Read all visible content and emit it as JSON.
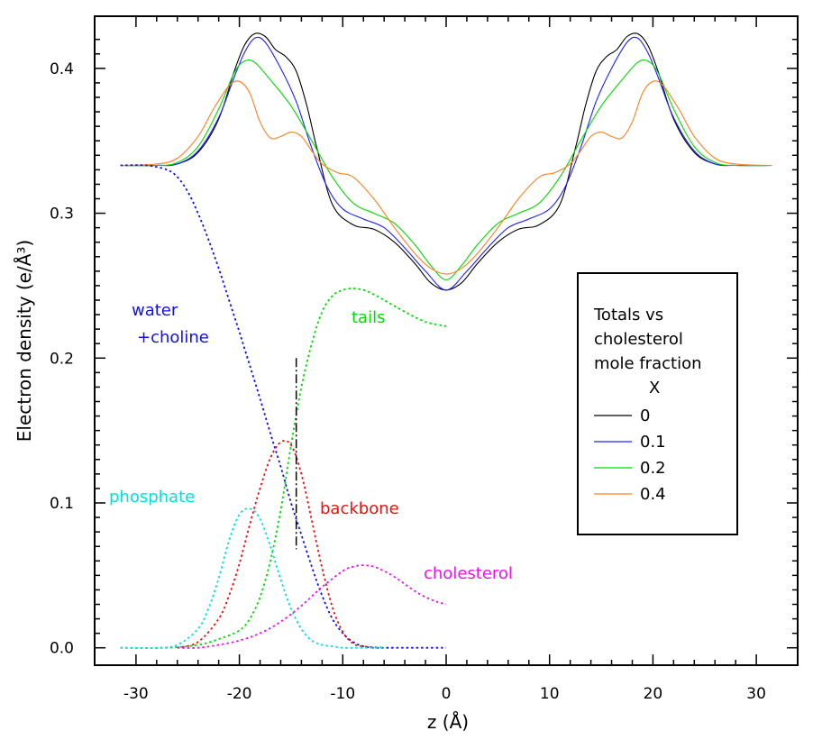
{
  "chart_data": {
    "type": "line",
    "xlabel": "z (Å)",
    "ylabel": "Electron density (e/Å³)",
    "xlim": [
      -34,
      34
    ],
    "ylim": [
      -0.012,
      0.436
    ],
    "xticks": [
      -30,
      -20,
      -10,
      0,
      10,
      20,
      30
    ],
    "xtick_labels": [
      "-30",
      "-20",
      "-10",
      "0",
      "10",
      "20",
      "30"
    ],
    "yticks": [
      0.0,
      0.1,
      0.2,
      0.3,
      0.4
    ],
    "ytick_labels": [
      "0.0",
      "0.1",
      "0.2",
      "0.3",
      "0.4"
    ],
    "grid": false,
    "legend": {
      "position": "right",
      "title_lines": [
        "Totals vs",
        "cholesterol",
        "mole fraction",
        "X"
      ],
      "entries": [
        {
          "label": "0",
          "color": "#000000"
        },
        {
          "label": "0.1",
          "color": "#2020ff"
        },
        {
          "label": "0.2",
          "color": "#00dd00"
        },
        {
          "label": "0.4",
          "color": "#ff8020"
        }
      ]
    },
    "series": [
      {
        "name": "0",
        "style": "solid",
        "color": "#000000",
        "x": [
          -31.5,
          -28,
          -26,
          -24,
          -22,
          -20.5,
          -19.5,
          -18.5,
          -17.5,
          -16.5,
          -15.5,
          -14.5,
          -13.5,
          -12.5,
          -11,
          -9,
          -7,
          -5,
          -3,
          -1.5,
          0,
          1.5,
          3,
          5,
          7,
          9,
          11,
          12.5,
          13.5,
          14.5,
          15.5,
          16.5,
          17.5,
          18.5,
          19.5,
          20.5,
          22,
          24,
          26,
          28,
          31.5
        ],
        "y": [
          0.333,
          0.333,
          0.334,
          0.342,
          0.365,
          0.398,
          0.416,
          0.424,
          0.422,
          0.413,
          0.408,
          0.398,
          0.375,
          0.345,
          0.306,
          0.292,
          0.289,
          0.28,
          0.265,
          0.252,
          0.247,
          0.252,
          0.265,
          0.28,
          0.289,
          0.292,
          0.306,
          0.345,
          0.375,
          0.398,
          0.408,
          0.413,
          0.422,
          0.424,
          0.416,
          0.398,
          0.365,
          0.342,
          0.334,
          0.333,
          0.333
        ]
      },
      {
        "name": "0.1",
        "style": "solid",
        "color": "#2020ff",
        "x": [
          -31.5,
          -28,
          -26,
          -24,
          -22,
          -20.5,
          -19.5,
          -18.5,
          -17.5,
          -16,
          -14.5,
          -13,
          -11.5,
          -10,
          -8,
          -6,
          -4,
          -2,
          0,
          2,
          4,
          6,
          8,
          10,
          11.5,
          13,
          14.5,
          16,
          17.5,
          18.5,
          19.5,
          20.5,
          22,
          24,
          26,
          28,
          31.5
        ],
        "y": [
          0.333,
          0.333,
          0.334,
          0.343,
          0.366,
          0.394,
          0.411,
          0.421,
          0.418,
          0.4,
          0.377,
          0.345,
          0.318,
          0.303,
          0.296,
          0.29,
          0.276,
          0.26,
          0.247,
          0.26,
          0.276,
          0.29,
          0.296,
          0.303,
          0.318,
          0.345,
          0.377,
          0.4,
          0.418,
          0.421,
          0.411,
          0.394,
          0.366,
          0.343,
          0.334,
          0.333,
          0.333
        ]
      },
      {
        "name": "0.2",
        "style": "solid",
        "color": "#00dd00",
        "x": [
          -31.5,
          -28,
          -26,
          -24,
          -22,
          -20.5,
          -19.5,
          -18.5,
          -17,
          -15,
          -13,
          -11,
          -9,
          -7,
          -5,
          -3,
          -1.5,
          0,
          1.5,
          3,
          5,
          7,
          9,
          11,
          13,
          15,
          17,
          18.5,
          19.5,
          20.5,
          22,
          24,
          26,
          28,
          31.5
        ],
        "y": [
          0.333,
          0.333,
          0.335,
          0.346,
          0.372,
          0.397,
          0.405,
          0.404,
          0.392,
          0.374,
          0.35,
          0.325,
          0.307,
          0.3,
          0.293,
          0.278,
          0.264,
          0.254,
          0.264,
          0.278,
          0.293,
          0.3,
          0.307,
          0.325,
          0.35,
          0.374,
          0.392,
          0.404,
          0.405,
          0.397,
          0.372,
          0.346,
          0.335,
          0.333,
          0.333
        ]
      },
      {
        "name": "0.4",
        "style": "solid",
        "color": "#ff8020",
        "x": [
          -31.5,
          -28,
          -26,
          -24,
          -22.5,
          -21,
          -20,
          -19,
          -18,
          -17,
          -16,
          -15,
          -14,
          -13,
          -12,
          -10.5,
          -9,
          -7,
          -5,
          -3,
          -1.5,
          0,
          1.5,
          3,
          5,
          7,
          9,
          10.5,
          12,
          13,
          14,
          15,
          16,
          17,
          18,
          19,
          20,
          21,
          22.5,
          24,
          26,
          28,
          31.5
        ],
        "y": [
          0.333,
          0.334,
          0.338,
          0.353,
          0.372,
          0.388,
          0.391,
          0.383,
          0.363,
          0.352,
          0.353,
          0.356,
          0.353,
          0.343,
          0.334,
          0.328,
          0.325,
          0.31,
          0.29,
          0.272,
          0.262,
          0.258,
          0.262,
          0.272,
          0.29,
          0.31,
          0.325,
          0.328,
          0.334,
          0.343,
          0.353,
          0.356,
          0.353,
          0.352,
          0.363,
          0.383,
          0.391,
          0.388,
          0.372,
          0.353,
          0.338,
          0.334,
          0.333
        ]
      },
      {
        "name": "water +choline",
        "style": "dotted",
        "color": "#1010ee",
        "x": [
          -31.5,
          -29,
          -27,
          -26,
          -25,
          -24,
          -23,
          -22,
          -21,
          -20,
          -19,
          -18,
          -17,
          -16,
          -15,
          -14,
          -13,
          -12,
          -11,
          -10,
          -9,
          -8,
          -7,
          -6,
          -4,
          -2,
          0
        ],
        "y": [
          0.333,
          0.333,
          0.33,
          0.325,
          0.315,
          0.3,
          0.282,
          0.262,
          0.24,
          0.218,
          0.195,
          0.172,
          0.148,
          0.125,
          0.1,
          0.078,
          0.056,
          0.036,
          0.02,
          0.01,
          0.004,
          0.001,
          0.0,
          0.0,
          0.0,
          0.0,
          0.0
        ]
      },
      {
        "name": "tails",
        "style": "dotted",
        "color": "#00dd00",
        "x": [
          -31.5,
          -27,
          -24,
          -22,
          -20,
          -19,
          -18,
          -17,
          -16,
          -15,
          -14,
          -13,
          -12,
          -11,
          -10,
          -9,
          -8,
          -7,
          -6,
          -4,
          -2,
          0
        ],
        "y": [
          0.0,
          0.0,
          0.002,
          0.006,
          0.012,
          0.02,
          0.035,
          0.06,
          0.095,
          0.14,
          0.18,
          0.21,
          0.232,
          0.243,
          0.247,
          0.248,
          0.247,
          0.244,
          0.24,
          0.232,
          0.225,
          0.222
        ]
      },
      {
        "name": "backbone",
        "style": "dotted",
        "color": "#ee1010",
        "x": [
          -26,
          -24,
          -22,
          -21,
          -20,
          -19,
          -18,
          -17,
          -16,
          -15,
          -14,
          -13,
          -12,
          -11,
          -10,
          -9,
          -8,
          -6
        ],
        "y": [
          0.0,
          0.004,
          0.02,
          0.036,
          0.058,
          0.085,
          0.11,
          0.131,
          0.142,
          0.14,
          0.12,
          0.088,
          0.055,
          0.028,
          0.011,
          0.003,
          0.001,
          0.0
        ]
      },
      {
        "name": "phosphate",
        "style": "dotted",
        "color": "#00e0e0",
        "x": [
          -31.5,
          -28,
          -26,
          -24,
          -23,
          -22,
          -21,
          -20,
          -19,
          -18,
          -17,
          -16,
          -15,
          -14,
          -13,
          -12,
          -11,
          -10,
          -8,
          -6
        ],
        "y": [
          0.0,
          0.0,
          0.002,
          0.013,
          0.027,
          0.048,
          0.074,
          0.092,
          0.096,
          0.089,
          0.07,
          0.047,
          0.027,
          0.013,
          0.005,
          0.002,
          0.001,
          0.0,
          0.0,
          0.0
        ]
      },
      {
        "name": "cholesterol",
        "style": "dotted",
        "color": "#ee10ee",
        "x": [
          -26,
          -24,
          -22,
          -20,
          -18,
          -16,
          -14,
          -12,
          -10,
          -9,
          -8,
          -7,
          -6,
          -5,
          -4,
          -3,
          -2,
          -1,
          0
        ],
        "y": [
          0.0,
          0.0,
          0.002,
          0.005,
          0.01,
          0.018,
          0.029,
          0.042,
          0.053,
          0.056,
          0.057,
          0.056,
          0.053,
          0.049,
          0.044,
          0.039,
          0.035,
          0.032,
          0.03
        ]
      }
    ],
    "annotations": [
      {
        "text": "water",
        "color": "#1010ee"
      },
      {
        "text": "+choline",
        "color": "#1010ee"
      },
      {
        "text": "tails",
        "color": "#00dd00"
      },
      {
        "text": "phosphate",
        "color": "#00e0e0"
      },
      {
        "text": "backbone",
        "color": "#ee1010"
      },
      {
        "text": "cholesterol",
        "color": "#ee10ee"
      }
    ],
    "vertical_marker": {
      "x": -14.5,
      "y_range": [
        0.2,
        0.068
      ],
      "style": "dash-dot",
      "color": "#000000"
    }
  }
}
